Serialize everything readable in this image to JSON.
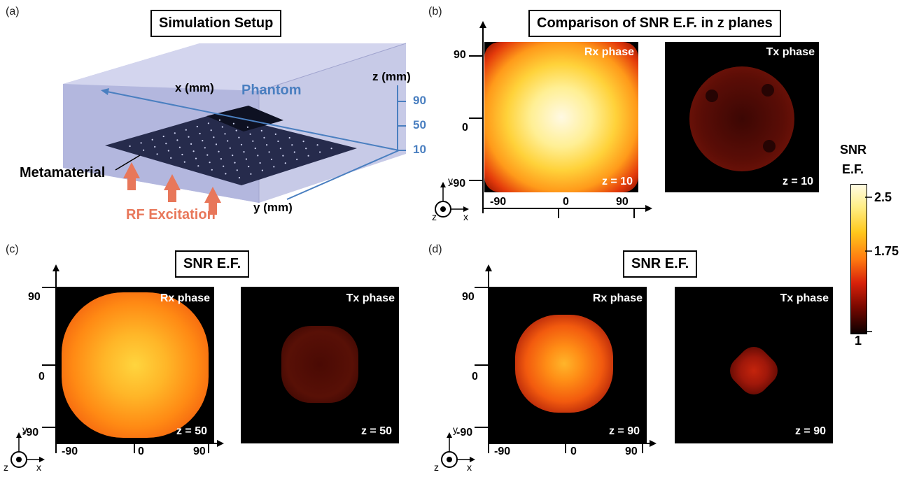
{
  "panels": {
    "a": {
      "letter": "(a)",
      "title": "Simulation Setup",
      "labels": {
        "x_axis": "x (mm)",
        "z_axis": "z (mm)",
        "y_axis": "y (mm)",
        "phantom": "Phantom",
        "metamaterial": "Metamaterial",
        "rf": "RF Excitation"
      },
      "z_ticks": [
        "90",
        "50",
        "10"
      ]
    },
    "b": {
      "letter": "(b)",
      "title": "Comparison of SNR E.F. in z planes",
      "rx_label": "Rx phase",
      "tx_label": "Tx phase",
      "z_label": "z = 10",
      "z_label_tx": "z = 10"
    },
    "c": {
      "letter": "(c)",
      "title": "SNR E.F.",
      "rx_label": "Rx phase",
      "tx_label": "Tx phase",
      "z_label": "z = 50",
      "z_label_tx": "z = 50"
    },
    "d": {
      "letter": "(d)",
      "title": "SNR E.F.",
      "rx_label": "Rx phase",
      "tx_label": "Tx phase",
      "z_label": "z = 90",
      "z_label_tx": "z = 90"
    }
  },
  "ticks": {
    "y_top": "90",
    "y_mid": "0",
    "y_bottom": "-90",
    "x_left": "-90",
    "x_mid": "0",
    "x_right": "90"
  },
  "coord": {
    "y": "y",
    "z": "z",
    "x": "x"
  },
  "colorbar": {
    "title_line1": "SNR",
    "title_line2": "E.F.",
    "tick_high": "2.5",
    "tick_mid": "1.75",
    "tick_low": "1"
  },
  "colors": {
    "phantom_blue": "#4a7fc0",
    "rf_orange": "#e8775a",
    "phantom_fill": "#b9bde0",
    "sheet": "#1f2540"
  }
}
